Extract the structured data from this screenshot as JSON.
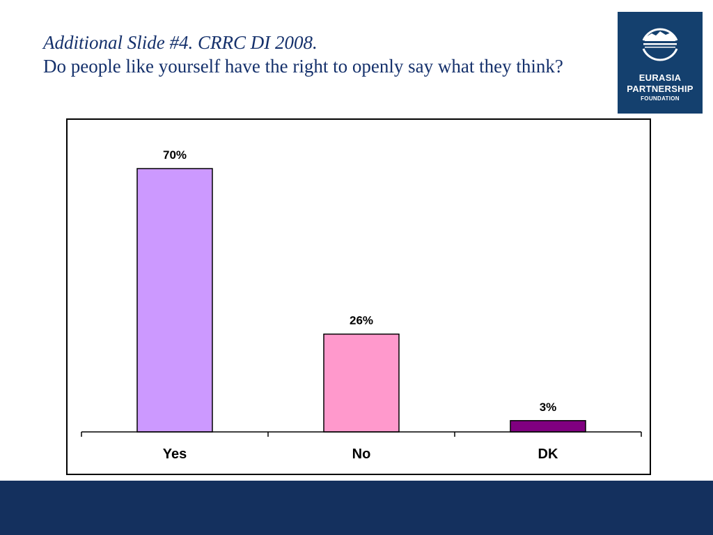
{
  "header": {
    "title_line1": "Additional Slide #4. CRRC DI 2008.",
    "title_line2": "Do people like yourself have the right to openly say what they think?"
  },
  "logo": {
    "line1": "EURASIA",
    "line2": "PARTNERSHIP",
    "line3": "FOUNDATION",
    "bg_color": "#14406e"
  },
  "footer": {
    "bg_color": "#14305e"
  },
  "chart_data": {
    "type": "bar",
    "categories": [
      "Yes",
      "No",
      "DK"
    ],
    "values": [
      70,
      26,
      3
    ],
    "data_labels": [
      "70%",
      "26%",
      "3%"
    ],
    "colors": [
      "#cc99ff",
      "#ff99cc",
      "#800080"
    ],
    "title": "",
    "xlabel": "",
    "ylabel": "",
    "ylim": [
      0,
      70
    ],
    "grid": false,
    "legend": "none"
  }
}
